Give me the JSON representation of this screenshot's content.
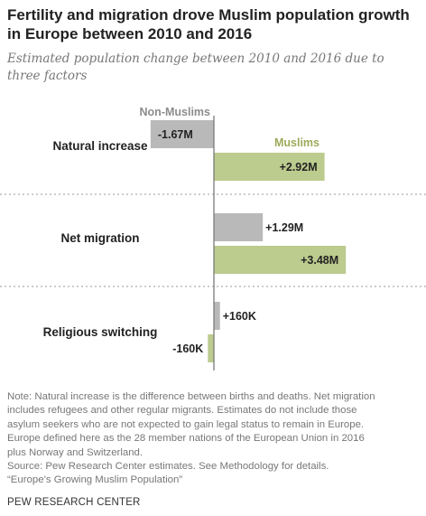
{
  "header": {
    "title": "Fertility and migration drove Muslim population growth in Europe between 2010 and 2016",
    "subtitle": "Estimated population change between 2010 and 2016 due to three factors"
  },
  "chart_data": {
    "type": "bar",
    "orientation": "horizontal",
    "categories": [
      "Natural increase",
      "Net migration",
      "Religious switching"
    ],
    "series": [
      {
        "name": "Non-Muslims",
        "values": [
          -1.67,
          1.29,
          0.16
        ],
        "labels": [
          "-1.67M",
          "+1.29M",
          "+160K"
        ],
        "color": "#b9b9b9"
      },
      {
        "name": "Muslims",
        "values": [
          2.92,
          3.48,
          -0.16
        ],
        "labels": [
          "+2.92M",
          "+3.48M",
          "-160K"
        ],
        "color": "#bccb8e"
      }
    ],
    "unit": "millions",
    "legend_placement": "inline",
    "colors": {
      "non_muslims_label": "#8c8c8c",
      "muslims_label": "#9bab58",
      "axis": "#7a7a7a"
    }
  },
  "notes": {
    "lines": [
      "Note: Natural increase is the difference between births and deaths. Net migration",
      "includes refugees and other regular migrants. Estimates do not include those",
      "asylum seekers who are not expected to gain legal status to remain in Europe.",
      "Europe defined here as the 28 member nations of the European Union in 2016",
      "plus Norway and Switzerland.",
      "Source: Pew Research Center estimates. See Methodology for details.",
      "“Europe’s Growing Muslim Population”"
    ],
    "credit": "PEW RESEARCH CENTER"
  }
}
